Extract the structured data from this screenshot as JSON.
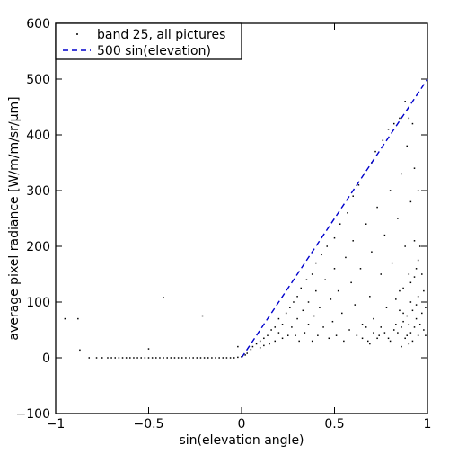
{
  "chart_data": {
    "type": "scatter",
    "title": "",
    "xlabel": "sin(elevation angle)",
    "ylabel": "average pixel radiance [W/m/m/sr/μm]",
    "xlim": [
      -1,
      1
    ],
    "ylim": [
      -100,
      600
    ],
    "x_ticks": [
      -1,
      -0.5,
      0,
      0.5,
      1
    ],
    "x_tick_labels": [
      "−1",
      "−0.5",
      "0",
      "0.5",
      "1"
    ],
    "y_ticks": [
      -100,
      0,
      100,
      200,
      300,
      400,
      500,
      600
    ],
    "y_tick_labels": [
      "−100",
      "0",
      "100",
      "200",
      "300",
      "400",
      "500",
      "600"
    ],
    "grid": false,
    "legend_position": "top-left",
    "series": [
      {
        "name": "band 25, all pictures",
        "kind": "scatter",
        "color": "#000000",
        "points": [
          [
            -0.95,
            70
          ],
          [
            -0.88,
            70
          ],
          [
            -0.87,
            14
          ],
          [
            -0.42,
            108
          ],
          [
            -0.21,
            75
          ],
          [
            -0.5,
            16
          ],
          [
            -0.02,
            20
          ],
          [
            -0.82,
            0
          ],
          [
            -0.78,
            0
          ],
          [
            -0.75,
            0
          ],
          [
            -0.72,
            0
          ],
          [
            -0.7,
            0
          ],
          [
            -0.68,
            0
          ],
          [
            -0.66,
            0
          ],
          [
            -0.64,
            0
          ],
          [
            -0.62,
            0
          ],
          [
            -0.6,
            0
          ],
          [
            -0.58,
            0
          ],
          [
            -0.56,
            0
          ],
          [
            -0.54,
            0
          ],
          [
            -0.52,
            0
          ],
          [
            -0.5,
            0
          ],
          [
            -0.48,
            0
          ],
          [
            -0.46,
            0
          ],
          [
            -0.44,
            0
          ],
          [
            -0.42,
            0
          ],
          [
            -0.4,
            0
          ],
          [
            -0.38,
            0
          ],
          [
            -0.36,
            0
          ],
          [
            -0.34,
            0
          ],
          [
            -0.32,
            0
          ],
          [
            -0.3,
            0
          ],
          [
            -0.28,
            0
          ],
          [
            -0.26,
            0
          ],
          [
            -0.24,
            0
          ],
          [
            -0.22,
            0
          ],
          [
            -0.2,
            0
          ],
          [
            -0.18,
            0
          ],
          [
            -0.16,
            0
          ],
          [
            -0.14,
            0
          ],
          [
            -0.12,
            0
          ],
          [
            -0.1,
            0
          ],
          [
            -0.08,
            0
          ],
          [
            -0.06,
            0
          ],
          [
            -0.04,
            0
          ],
          [
            -0.02,
            1
          ],
          [
            0.0,
            2
          ],
          [
            0.02,
            5
          ],
          [
            0.03,
            8
          ],
          [
            0.05,
            15
          ],
          [
            0.06,
            20
          ],
          [
            0.08,
            25
          ],
          [
            0.1,
            30
          ],
          [
            0.1,
            18
          ],
          [
            0.12,
            35
          ],
          [
            0.12,
            22
          ],
          [
            0.14,
            40
          ],
          [
            0.15,
            25
          ],
          [
            0.16,
            50
          ],
          [
            0.18,
            55
          ],
          [
            0.18,
            30
          ],
          [
            0.2,
            45
          ],
          [
            0.2,
            70
          ],
          [
            0.22,
            60
          ],
          [
            0.22,
            35
          ],
          [
            0.24,
            80
          ],
          [
            0.25,
            40
          ],
          [
            0.26,
            90
          ],
          [
            0.27,
            55
          ],
          [
            0.28,
            100
          ],
          [
            0.29,
            40
          ],
          [
            0.3,
            110
          ],
          [
            0.3,
            70
          ],
          [
            0.31,
            30
          ],
          [
            0.32,
            125
          ],
          [
            0.33,
            85
          ],
          [
            0.34,
            45
          ],
          [
            0.35,
            140
          ],
          [
            0.36,
            60
          ],
          [
            0.36,
            100
          ],
          [
            0.38,
            150
          ],
          [
            0.38,
            30
          ],
          [
            0.39,
            75
          ],
          [
            0.4,
            170
          ],
          [
            0.4,
            120
          ],
          [
            0.41,
            40
          ],
          [
            0.42,
            90
          ],
          [
            0.43,
            185
          ],
          [
            0.44,
            55
          ],
          [
            0.45,
            140
          ],
          [
            0.46,
            200
          ],
          [
            0.47,
            35
          ],
          [
            0.48,
            105
          ],
          [
            0.49,
            65
          ],
          [
            0.5,
            215
          ],
          [
            0.5,
            160
          ],
          [
            0.51,
            40
          ],
          [
            0.52,
            120
          ],
          [
            0.53,
            240
          ],
          [
            0.54,
            80
          ],
          [
            0.55,
            30
          ],
          [
            0.56,
            180
          ],
          [
            0.57,
            260
          ],
          [
            0.58,
            50
          ],
          [
            0.59,
            135
          ],
          [
            0.6,
            290
          ],
          [
            0.6,
            210
          ],
          [
            0.61,
            95
          ],
          [
            0.62,
            40
          ],
          [
            0.63,
            310
          ],
          [
            0.64,
            160
          ],
          [
            0.65,
            60
          ],
          [
            0.66,
            330
          ],
          [
            0.67,
            240
          ],
          [
            0.68,
            30
          ],
          [
            0.69,
            110
          ],
          [
            0.7,
            350
          ],
          [
            0.7,
            190
          ],
          [
            0.71,
            70
          ],
          [
            0.72,
            370
          ],
          [
            0.73,
            270
          ],
          [
            0.74,
            40
          ],
          [
            0.75,
            150
          ],
          [
            0.76,
            390
          ],
          [
            0.77,
            220
          ],
          [
            0.78,
            90
          ],
          [
            0.79,
            410
          ],
          [
            0.8,
            300
          ],
          [
            0.8,
            30
          ],
          [
            0.81,
            170
          ],
          [
            0.82,
            420
          ],
          [
            0.83,
            60
          ],
          [
            0.84,
            250
          ],
          [
            0.85,
            430
          ],
          [
            0.85,
            120
          ],
          [
            0.86,
            20
          ],
          [
            0.86,
            330
          ],
          [
            0.87,
            80
          ],
          [
            0.88,
            460
          ],
          [
            0.88,
            200
          ],
          [
            0.89,
            40
          ],
          [
            0.89,
            380
          ],
          [
            0.9,
            150
          ],
          [
            0.9,
            430
          ],
          [
            0.9,
            60
          ],
          [
            0.91,
            280
          ],
          [
            0.91,
            100
          ],
          [
            0.92,
            420
          ],
          [
            0.92,
            30
          ],
          [
            0.93,
            210
          ],
          [
            0.93,
            340
          ],
          [
            0.94,
            70
          ],
          [
            0.94,
            160
          ],
          [
            0.95,
            300
          ],
          [
            0.95,
            40
          ],
          [
            0.95,
            110
          ],
          [
            0.96,
            200
          ],
          [
            0.96,
            60
          ],
          [
            0.97,
            80
          ],
          [
            0.97,
            150
          ],
          [
            0.98,
            50
          ],
          [
            0.98,
            120
          ],
          [
            0.99,
            40
          ],
          [
            0.99,
            90
          ],
          [
            0.82,
            50
          ],
          [
            0.84,
            45
          ],
          [
            0.86,
            55
          ],
          [
            0.88,
            35
          ],
          [
            0.9,
            25
          ],
          [
            0.87,
            65
          ],
          [
            0.91,
            45
          ],
          [
            0.93,
            55
          ],
          [
            0.89,
            75
          ],
          [
            0.92,
            85
          ],
          [
            0.94,
            95
          ],
          [
            0.85,
            85
          ],
          [
            0.83,
            105
          ],
          [
            0.87,
            125
          ],
          [
            0.91,
            135
          ],
          [
            0.93,
            145
          ],
          [
            0.95,
            175
          ],
          [
            0.79,
            35
          ],
          [
            0.77,
            45
          ],
          [
            0.75,
            55
          ],
          [
            0.73,
            35
          ],
          [
            0.71,
            45
          ],
          [
            0.69,
            25
          ],
          [
            0.67,
            55
          ],
          [
            0.65,
            35
          ]
        ]
      },
      {
        "name": "500 sin(elevation)",
        "kind": "line",
        "style": "dashed",
        "color": "#0000cc",
        "x": [
          0,
          1
        ],
        "y": [
          0,
          500
        ]
      }
    ]
  }
}
